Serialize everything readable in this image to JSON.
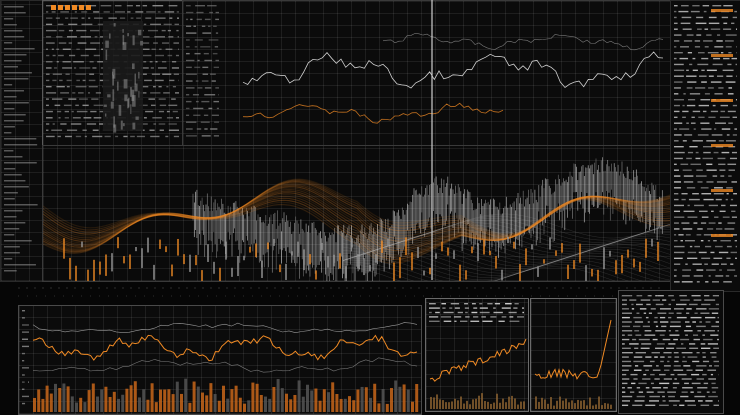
{
  "colors": {
    "background": "#060606",
    "accent_orange": "#f08a24",
    "highlight_white": "#f2f2f2",
    "grid_gray": "#5a5a5a"
  },
  "scene": {
    "type": "abstract financial data dashboard artwork",
    "panels": [
      "top-left-ticker",
      "main-wave-chart",
      "bottom-bar-line-chart",
      "bottom-mid-chart",
      "bottom-right-spike-chart",
      "right-text-column"
    ]
  }
}
